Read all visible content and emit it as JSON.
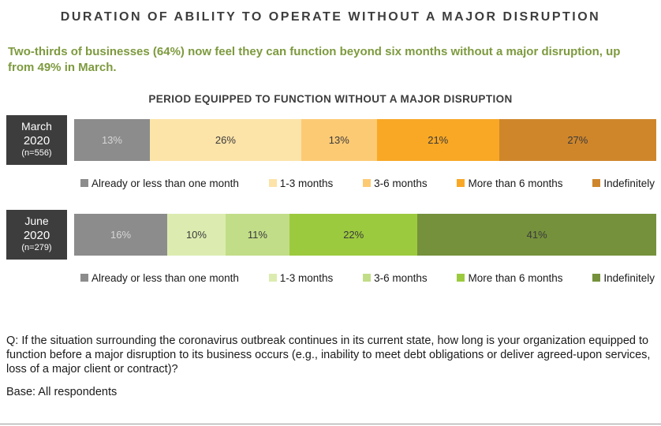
{
  "page": {
    "title": "DURATION OF ABILITY TO OPERATE WITHOUT A MAJOR DISRUPTION",
    "subtitle": "Two-thirds of businesses (64%) now feel they can function beyond six months without a major disruption, up from 49% in March.",
    "question": "Q: If the situation surrounding the coronavirus outbreak continues in its current state, how long is your organization equipped to function before a major disruption to its business occurs (e.g., inability to meet debt obligations or deliver agreed-upon services, loss of a major client or contract)?",
    "base_note": "Base: All respondents"
  },
  "colors": {
    "title_text": "#3d3d3d",
    "subtitle_text": "#7d9a3e",
    "row_label_bg": "#3d3d3d",
    "gray_segment": "#8c8c8c",
    "bottom_rule": "#9a9a9a"
  },
  "chart_data": {
    "type": "bar",
    "variant": "100pct-stacked-horizontal",
    "title": "PERIOD EQUIPPED TO FUNCTION WITHOUT A MAJOR DISRUPTION",
    "xlim": [
      0,
      100
    ],
    "legend_position": "below-each-bar",
    "categories": [
      "Already or less than one month",
      "1-3 months",
      "3-6 months",
      "More than 6 months",
      "Indefinitely"
    ],
    "series": [
      {
        "id": "march-2020",
        "name": "March 2020",
        "label_lines": [
          "March",
          "2020"
        ],
        "n_label": "(n=556)",
        "values": [
          13,
          26,
          13,
          21,
          27
        ],
        "value_labels": [
          "13%",
          "26%",
          "13%",
          "21%",
          "27%"
        ],
        "colors": [
          "#8c8c8c",
          "#fce3a8",
          "#fdca74",
          "#f9a825",
          "#cf862b"
        ],
        "value_text_colors": [
          "#d6d6d6",
          "#3a3a3a",
          "#3a3a3a",
          "#3a3a3a",
          "#3a3a3a"
        ]
      },
      {
        "id": "june-2020",
        "name": "June 2020",
        "label_lines": [
          "June",
          "2020"
        ],
        "n_label": "(n=279)",
        "values": [
          16,
          10,
          11,
          22,
          41
        ],
        "value_labels": [
          "16%",
          "10%",
          "11%",
          "22%",
          "41%"
        ],
        "colors": [
          "#8c8c8c",
          "#dcecb0",
          "#c2dd88",
          "#9cca3e",
          "#75913c"
        ],
        "value_text_colors": [
          "#d6d6d6",
          "#3a3a3a",
          "#3a3a3a",
          "#3a3a3a",
          "#3a3a3a"
        ]
      }
    ]
  }
}
